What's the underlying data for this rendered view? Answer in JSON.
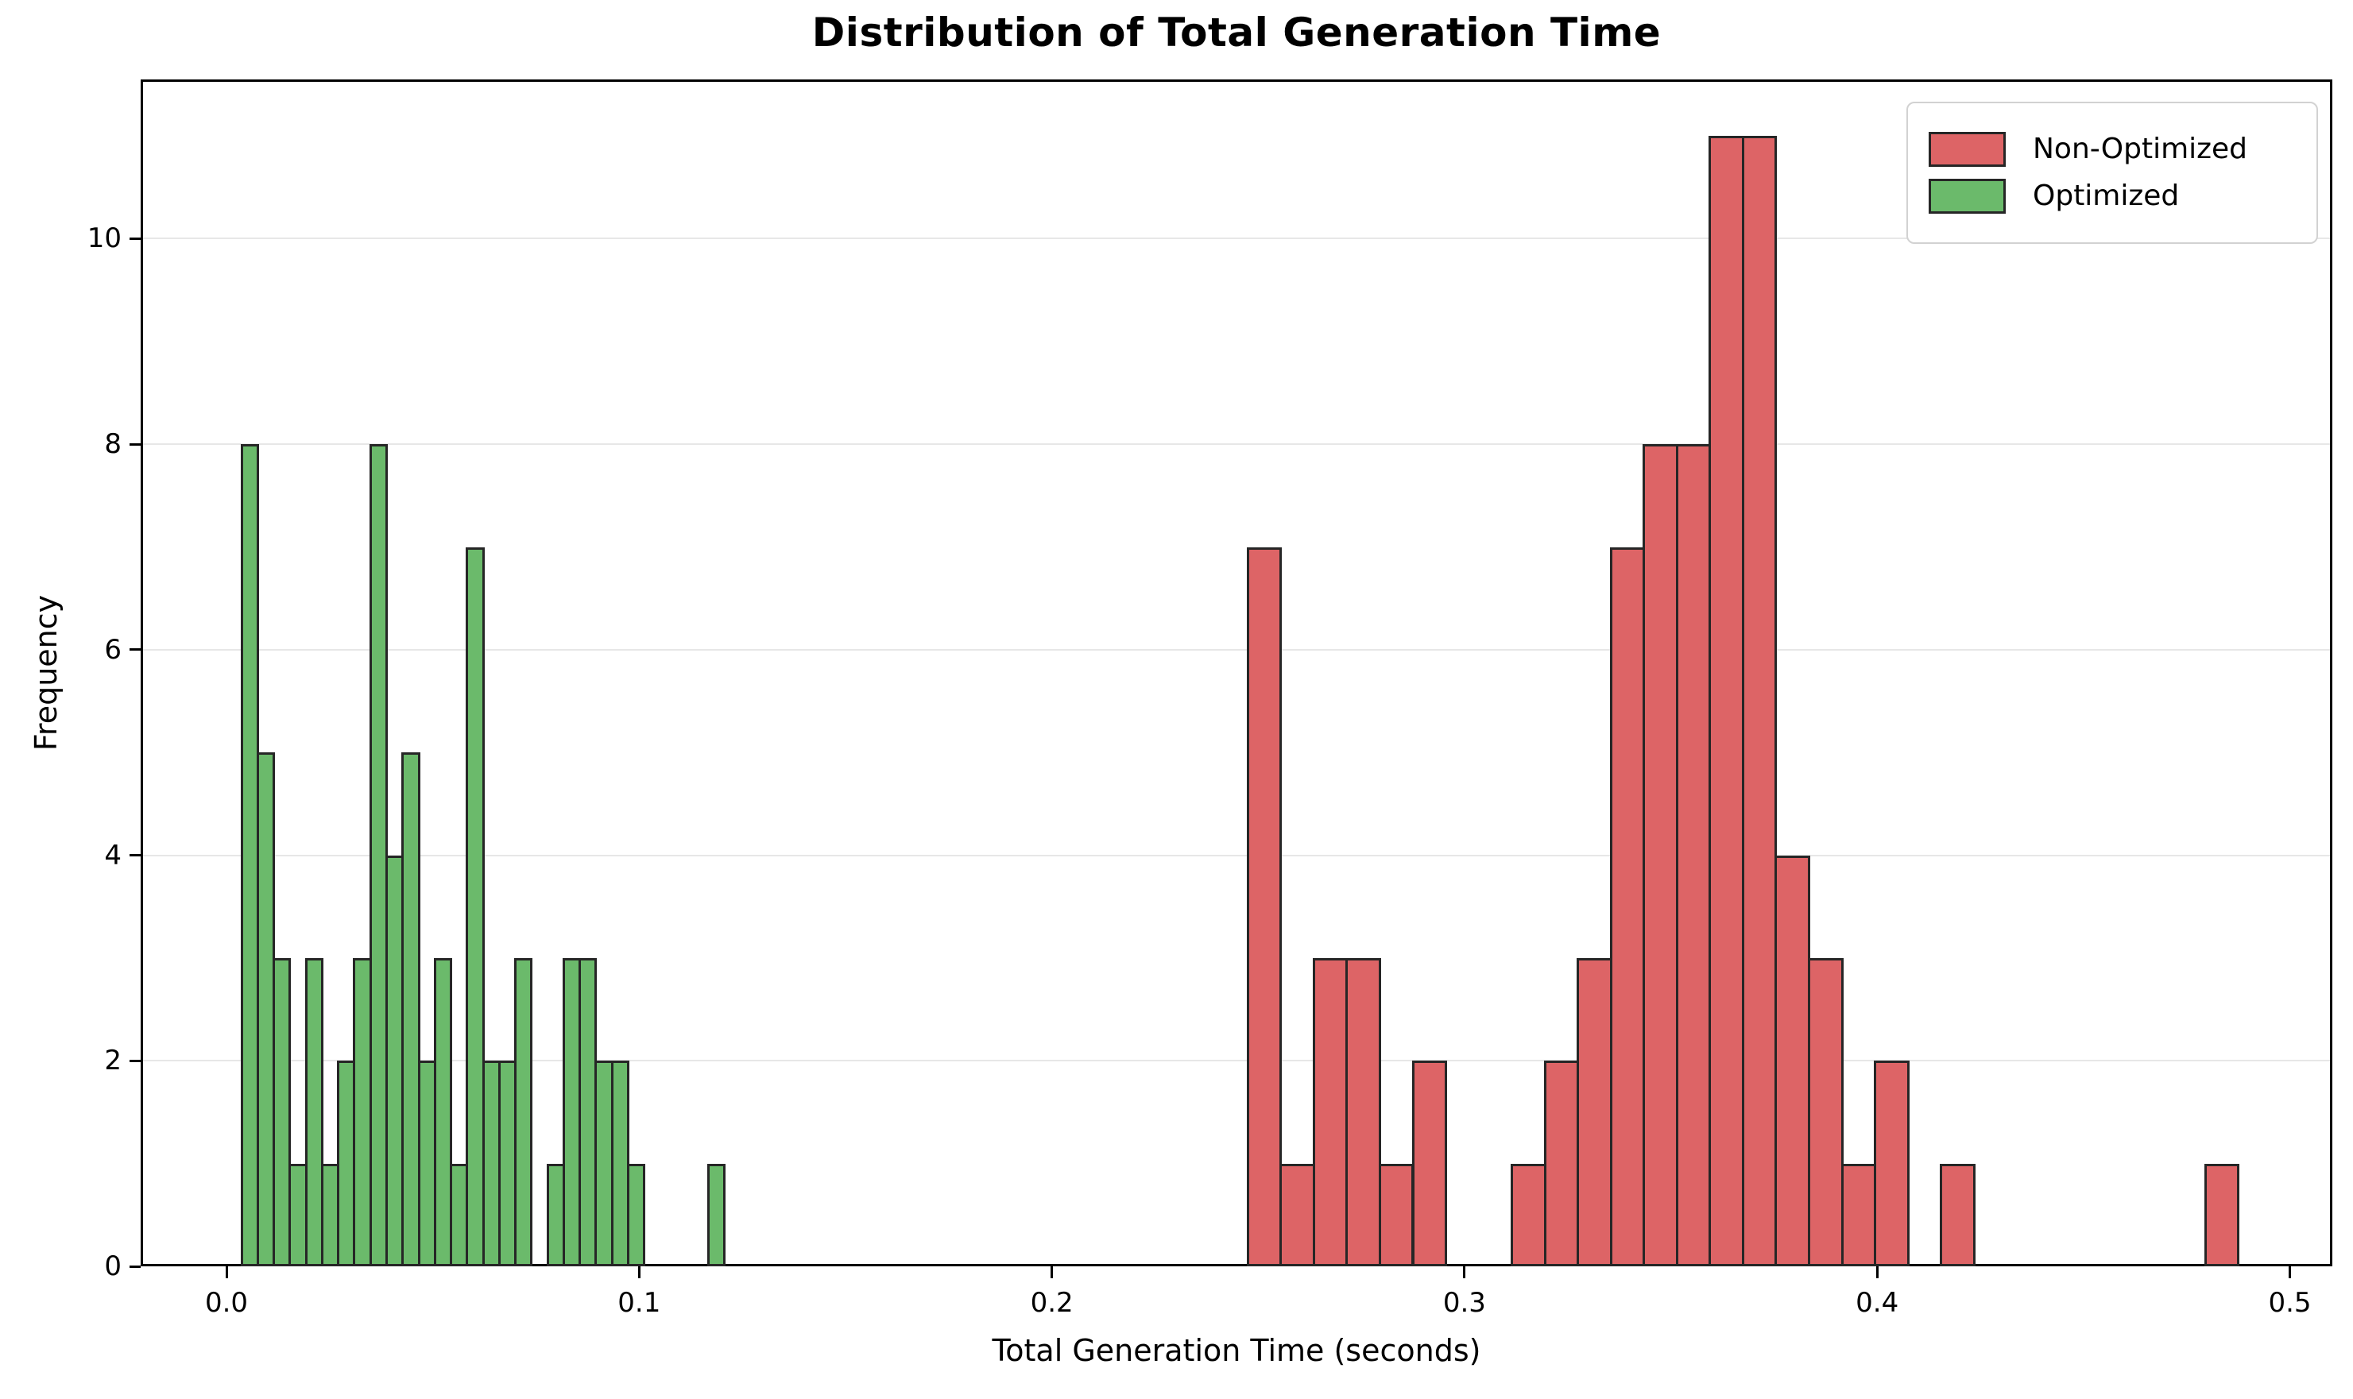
{
  "title": "Distribution of Total Generation Time",
  "xlabel": "Total Generation Time (seconds)",
  "ylabel": "Frequency",
  "legend": {
    "position": "upper right",
    "items": [
      {
        "label": "Non-Optimized",
        "color": "#dd6466",
        "edge_color": "#262626"
      },
      {
        "label": "Optimized",
        "color": "#6bba6b",
        "edge_color": "#262626"
      }
    ]
  },
  "chart_data": {
    "type": "bar",
    "subtype": "histogram",
    "title": "Distribution of Total Generation Time",
    "xlabel": "Total Generation Time (seconds)",
    "ylabel": "Frequency",
    "xlim": [
      -0.0208,
      0.5103
    ],
    "ylim": [
      0,
      11.55
    ],
    "x_ticks": [
      0.0,
      0.1,
      0.2,
      0.3,
      0.4,
      0.5
    ],
    "x_tick_labels": [
      "0.0",
      "0.1",
      "0.2",
      "0.3",
      "0.4",
      "0.5"
    ],
    "y_ticks": [
      0,
      2,
      4,
      6,
      8,
      10
    ],
    "y_tick_labels": [
      "0",
      "2",
      "4",
      "6",
      "8",
      "10"
    ],
    "grid": "horizontal",
    "grid_color": "#e7e7e7",
    "spine_color": "#000000",
    "legend_position": "upper right",
    "series": [
      {
        "name": "Non-Optimized",
        "color": "#dd6466",
        "edge_color": "#262626",
        "bin_start": 0.2475,
        "bin_width": 0.008,
        "counts": [
          7,
          1,
          3,
          3,
          1,
          2,
          0,
          0,
          1,
          2,
          3,
          7,
          8,
          8,
          11,
          11,
          4,
          3,
          1,
          2,
          0,
          1,
          0,
          0,
          0,
          0,
          0,
          0,
          0,
          1
        ]
      },
      {
        "name": "Optimized",
        "color": "#6bba6b",
        "edge_color": "#262626",
        "bin_start": 0.0037,
        "bin_width": 0.0039,
        "counts": [
          8,
          5,
          3,
          1,
          3,
          1,
          2,
          3,
          8,
          4,
          5,
          2,
          3,
          1,
          7,
          2,
          2,
          3,
          0,
          1,
          3,
          3,
          2,
          2,
          1,
          0,
          0,
          0,
          0,
          1
        ]
      }
    ]
  }
}
